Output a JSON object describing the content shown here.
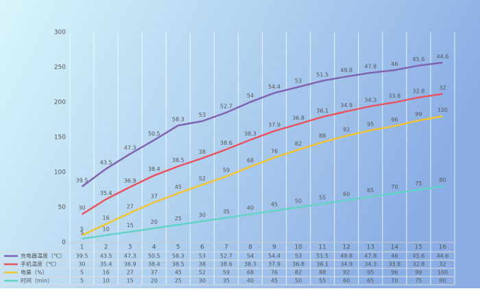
{
  "chart_data": {
    "type": "line",
    "stacked": true,
    "categories": [
      1,
      2,
      3,
      4,
      5,
      6,
      7,
      8,
      9,
      10,
      11,
      12,
      13,
      14,
      15,
      16
    ],
    "series": [
      {
        "name": "充电器温度（℃）",
        "color": "#7f63b0",
        "values": [
          39.5,
          43.5,
          47.3,
          50.5,
          58.3,
          53,
          52.7,
          54,
          54.4,
          53,
          51.5,
          49.8,
          47.8,
          46,
          45.6,
          44.6
        ]
      },
      {
        "name": "手机温度（℃）",
        "color": "#e9535e",
        "values": [
          30,
          35.4,
          36.9,
          38.4,
          38.5,
          38,
          38.6,
          38.3,
          37.9,
          36.8,
          36.1,
          34.9,
          34.3,
          33.8,
          32.8,
          32
        ]
      },
      {
        "name": "电量（%）",
        "color": "#f4c331",
        "values": [
          5,
          16,
          27,
          37,
          45,
          52,
          59,
          68,
          76,
          82,
          88,
          92,
          95,
          96,
          99,
          100
        ]
      },
      {
        "name": "时间（min）",
        "color": "#62d4c6",
        "values": [
          5,
          10,
          15,
          20,
          25,
          30,
          35,
          40,
          45,
          50,
          55,
          60,
          65,
          70,
          75,
          80
        ]
      }
    ],
    "ylim": [
      0,
      300
    ],
    "yticks": [
      0,
      50,
      100,
      150,
      200,
      250,
      300
    ],
    "grid": "vertical",
    "data_table": true
  }
}
